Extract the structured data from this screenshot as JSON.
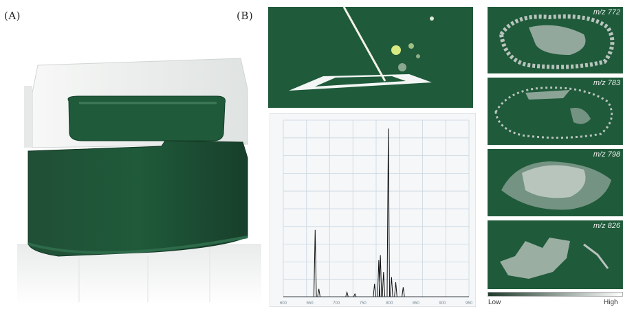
{
  "panels": {
    "a_label": "(A)",
    "b_label": "(B)"
  },
  "ion_images": [
    {
      "label": "m/z 772"
    },
    {
      "label": "m/z 783"
    },
    {
      "label": "m/z 798"
    },
    {
      "label": "m/z 826"
    }
  ],
  "intensity_scale": {
    "low": "Low",
    "high": "High"
  },
  "colors": {
    "instrument_green": "#1f5a3a",
    "spectrum_line": "#111111",
    "grid": "#c8d6e2",
    "ion_signal": "#b9c3bd"
  },
  "chart_data": {
    "type": "line",
    "title": "",
    "xlabel": "",
    "ylabel": "",
    "x_tick_labels": [
      "600",
      "650",
      "700",
      "750",
      "800",
      "850",
      "900",
      "950"
    ],
    "grid": true,
    "peaks": [
      {
        "x": 660,
        "y": 0.4
      },
      {
        "x": 667,
        "y": 0.05
      },
      {
        "x": 720,
        "y": 0.03
      },
      {
        "x": 735,
        "y": 0.02
      },
      {
        "x": 772,
        "y": 0.08
      },
      {
        "x": 780,
        "y": 0.22
      },
      {
        "x": 783,
        "y": 0.25
      },
      {
        "x": 789,
        "y": 0.15
      },
      {
        "x": 798,
        "y": 1.0
      },
      {
        "x": 804,
        "y": 0.12
      },
      {
        "x": 812,
        "y": 0.09
      },
      {
        "x": 826,
        "y": 0.06
      }
    ],
    "xlim": [
      600,
      950
    ],
    "ylim": [
      0,
      1.05
    ]
  }
}
